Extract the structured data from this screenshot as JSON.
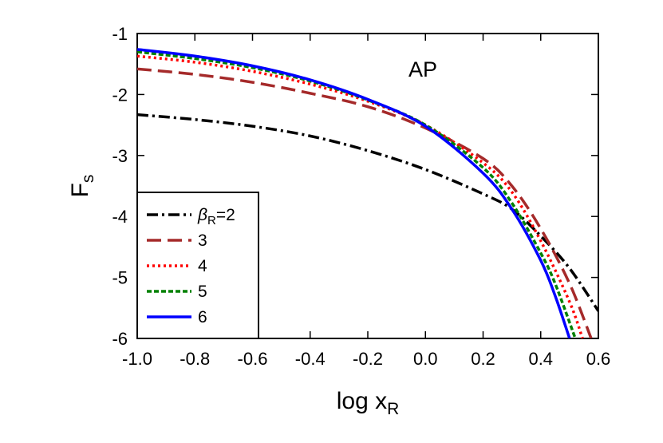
{
  "chart_data": {
    "type": "line",
    "annotation": "AP",
    "xlabel": {
      "main": "log x",
      "sub": "R"
    },
    "ylabel": {
      "main": "F",
      "sub": "s"
    },
    "xlim": [
      -1.0,
      0.6
    ],
    "ylim": [
      -6,
      -1
    ],
    "xticks": [
      "-1.0",
      "-0.8",
      "-0.6",
      "-0.4",
      "-0.2",
      "0.0",
      "0.2",
      "0.4",
      "0.6"
    ],
    "yticks": [
      "-1",
      "-2",
      "-3",
      "-4",
      "-5",
      "-6"
    ],
    "grid": false,
    "legend": {
      "placement": "bottom-left",
      "prefix": {
        "symbol": "β",
        "sub": "R",
        "eq": "=2"
      },
      "labels": [
        "3",
        "4",
        "5",
        "6"
      ]
    },
    "series": [
      {
        "label": "βR=2",
        "color": "#000000",
        "dash": "dashdot",
        "x": [
          -1.0,
          -0.8,
          -0.6,
          -0.4,
          -0.2,
          0.0,
          0.2,
          0.3,
          0.4,
          0.5,
          0.6
        ],
        "y": [
          -2.33,
          -2.41,
          -2.52,
          -2.68,
          -2.92,
          -3.23,
          -3.63,
          -3.88,
          -4.32,
          -4.85,
          -5.55
        ]
      },
      {
        "label": "3",
        "color": "#a52a2a",
        "dash": "longdash",
        "x": [
          -1.0,
          -0.8,
          -0.6,
          -0.4,
          -0.2,
          0.0,
          0.2,
          0.3,
          0.4,
          0.5,
          0.575
        ],
        "y": [
          -1.58,
          -1.67,
          -1.8,
          -1.98,
          -2.2,
          -2.55,
          -3.05,
          -3.5,
          -4.2,
          -5.1,
          -6.0
        ]
      },
      {
        "label": "4",
        "color": "#ff0000",
        "dash": "dot",
        "x": [
          -1.0,
          -0.8,
          -0.6,
          -0.4,
          -0.2,
          0.0,
          0.2,
          0.3,
          0.4,
          0.5,
          0.545
        ],
        "y": [
          -1.37,
          -1.47,
          -1.62,
          -1.83,
          -2.11,
          -2.5,
          -3.12,
          -3.6,
          -4.4,
          -5.4,
          -6.0
        ]
      },
      {
        "label": "5",
        "color": "#008000",
        "dash": "shortdash",
        "x": [
          -1.0,
          -0.8,
          -0.6,
          -0.4,
          -0.2,
          0.0,
          0.2,
          0.3,
          0.4,
          0.45,
          0.52
        ],
        "y": [
          -1.3,
          -1.41,
          -1.56,
          -1.78,
          -2.09,
          -2.5,
          -3.2,
          -3.78,
          -4.6,
          -5.1,
          -6.0
        ]
      },
      {
        "label": "6",
        "color": "#0000ff",
        "dash": "solid",
        "x": [
          -1.0,
          -0.8,
          -0.6,
          -0.4,
          -0.2,
          0.0,
          0.2,
          0.3,
          0.4,
          0.45,
          0.5
        ],
        "y": [
          -1.26,
          -1.37,
          -1.53,
          -1.76,
          -2.08,
          -2.52,
          -3.29,
          -3.88,
          -4.72,
          -5.3,
          -6.0
        ]
      }
    ]
  }
}
